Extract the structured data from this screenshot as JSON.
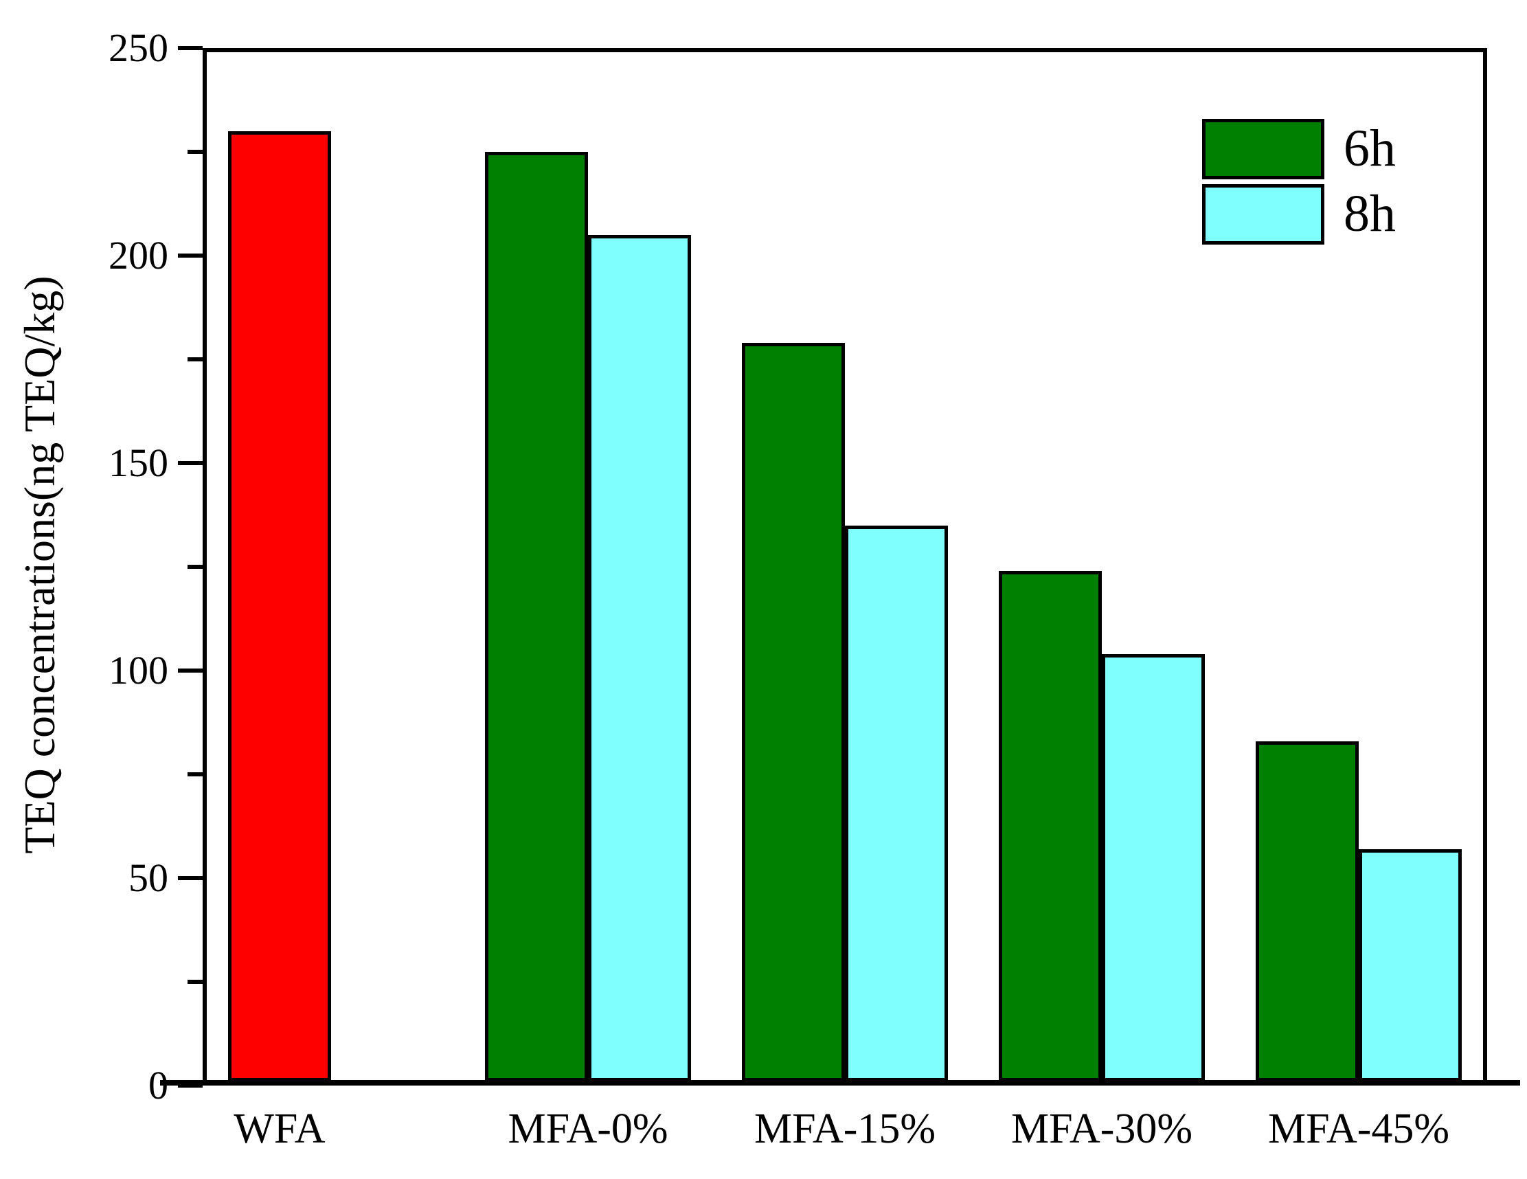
{
  "chart_data": {
    "type": "bar",
    "title": "",
    "xlabel": "",
    "ylabel": "TEQ concentrations(ng TEQ/kg)",
    "categories": [
      "WFA",
      "MFA-0%",
      "MFA-15%",
      "MFA-30%",
      "MFA-45%"
    ],
    "series": [
      {
        "name": "6h",
        "color": "#008000",
        "values": [
          229,
          224,
          178,
          123,
          82
        ]
      },
      {
        "name": "8h",
        "color": "#80ffff",
        "values": [
          null,
          204,
          134,
          103,
          56
        ]
      }
    ],
    "bar_overrides": [
      {
        "category": "WFA",
        "series": "6h",
        "color": "#ff0000"
      }
    ],
    "ylim": [
      0,
      250
    ],
    "ytick_step_major": 50,
    "ytick_step_minor": 25,
    "ytick_labels": [
      "0",
      "50",
      "100",
      "150",
      "200",
      "250"
    ],
    "legend": {
      "position": "top-right",
      "entries": [
        {
          "label": "6h",
          "color": "#008000"
        },
        {
          "label": "8h",
          "color": "#80ffff"
        }
      ]
    },
    "grid": false,
    "frame": true,
    "axis_color": "#000000",
    "background": "#ffffff"
  }
}
